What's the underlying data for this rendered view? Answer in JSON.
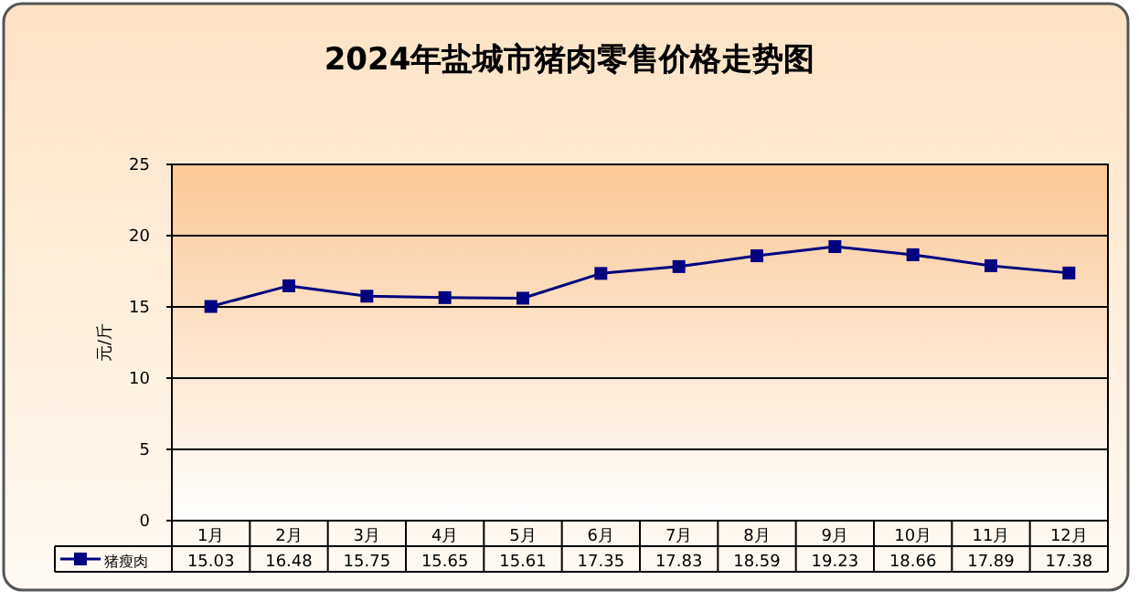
{
  "chart_data": {
    "type": "line",
    "title": "2024年盐城市猪肉零售价格走势图",
    "ylabel": "元/斤",
    "categories": [
      "1月",
      "2月",
      "3月",
      "4月",
      "5月",
      "6月",
      "7月",
      "8月",
      "9月",
      "10月",
      "11月",
      "12月"
    ],
    "series": [
      {
        "name": "猪瘦肉",
        "color": "#000080",
        "values": [
          15.03,
          16.48,
          15.75,
          15.65,
          15.61,
          17.35,
          17.83,
          18.59,
          19.23,
          18.66,
          17.89,
          17.38
        ]
      }
    ],
    "ylim": [
      0,
      25
    ],
    "yticks": [
      0,
      5,
      10,
      15,
      20,
      25
    ],
    "grid": "y",
    "marker": "square",
    "line_style": "solid",
    "data_labels": true,
    "legend": "bottom left"
  }
}
